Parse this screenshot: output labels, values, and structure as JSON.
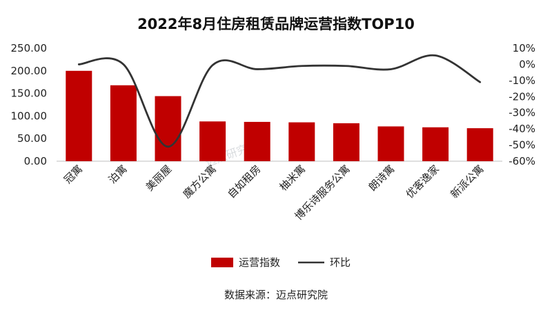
{
  "chart_data": {
    "type": "bar",
    "title": "2022年8月住房租赁品牌运营指数TOP10",
    "categories": [
      "冠寓",
      "泊寓",
      "美丽屋",
      "魔方公寓",
      "自如租房",
      "柚米寓",
      "博乐诗服务公寓",
      "朗诗寓",
      "优客逸家",
      "新派公寓"
    ],
    "series": [
      {
        "name": "运营指数",
        "type": "bar",
        "axis": "left",
        "color": "#c00000",
        "values": [
          200,
          168,
          144,
          88,
          87,
          86,
          84,
          77,
          75,
          73
        ]
      },
      {
        "name": "环比",
        "type": "line",
        "axis": "right",
        "color": "#333333",
        "values": [
          0.0,
          0.0,
          -51.0,
          -0.5,
          -3.0,
          -1.0,
          -1.0,
          -3.0,
          5.5,
          -11.0
        ]
      }
    ],
    "ylim_left": [
      0,
      250
    ],
    "yticks_left": [
      "0.00",
      "50.00",
      "100.00",
      "150.00",
      "200.00",
      "250.00"
    ],
    "ylim_right": [
      -60,
      10
    ],
    "yticks_right": [
      "-60%",
      "-50%",
      "-40%",
      "-30%",
      "-20%",
      "-10%",
      "0%",
      "10%"
    ],
    "legend_position": "bottom",
    "grid": false
  },
  "source_text": "数据来源：迈点研究院",
  "watermark_text": "迈点研究院"
}
